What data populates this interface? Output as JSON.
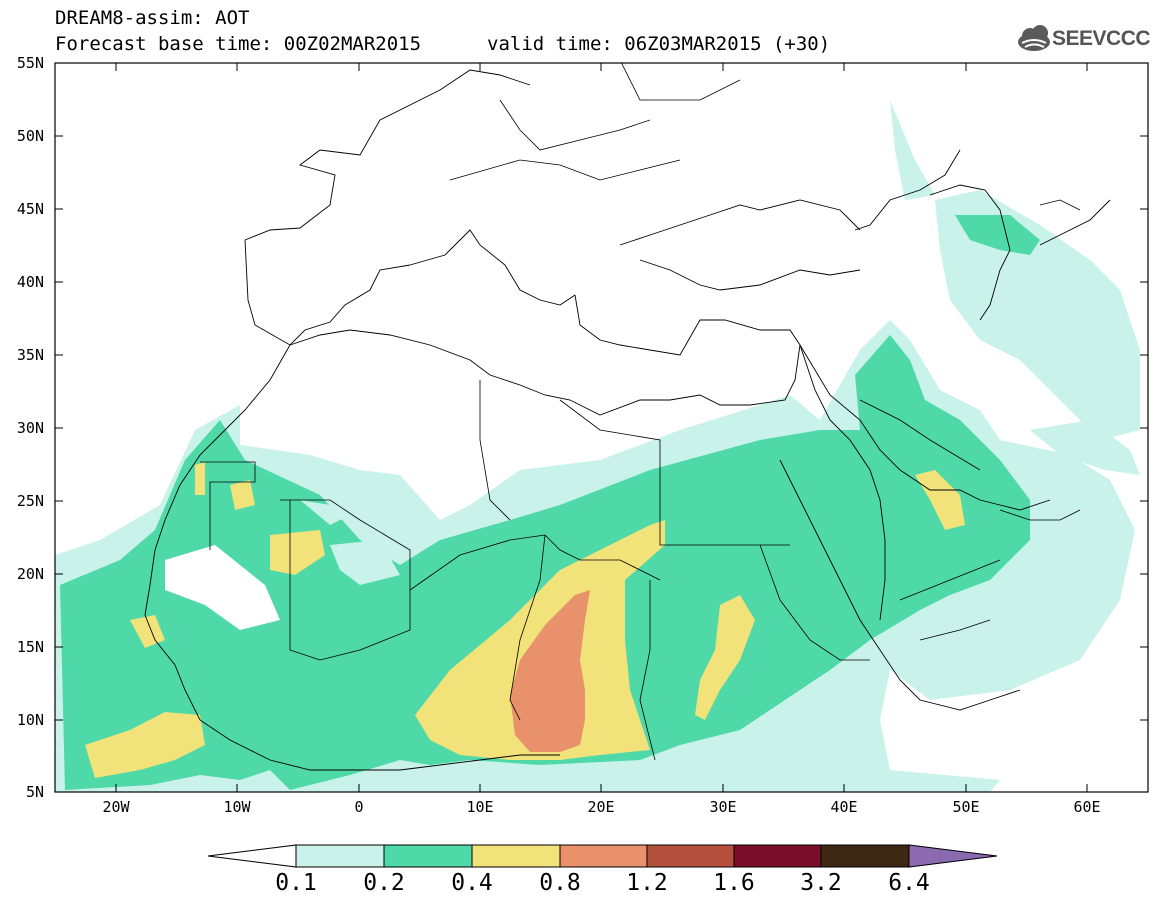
{
  "header": {
    "title": "DREAM8-assim: AOT",
    "base_time": "Forecast base time: 00Z02MAR2015",
    "valid_time": "valid time: 06Z03MAR2015 (+30)"
  },
  "logo": {
    "text": "SEEVCCC",
    "icon": "cloud-icon"
  },
  "map": {
    "lat_labels": [
      "55N",
      "50N",
      "45N",
      "40N",
      "35N",
      "30N",
      "25N",
      "20N",
      "15N",
      "10N",
      "5N"
    ],
    "lon_labels": [
      "20W",
      "10W",
      "0",
      "10E",
      "20E",
      "30E",
      "40E",
      "50E",
      "60E"
    ],
    "lon_range": [
      -25,
      65
    ],
    "lat_range": [
      5,
      55
    ]
  },
  "colorbar": {
    "labels": [
      "0.1",
      "0.2",
      "0.4",
      "0.8",
      "1.2",
      "1.6",
      "3.2",
      "6.4"
    ],
    "colors": [
      "#ffffff",
      "#c8f2ea",
      "#4fd8a8",
      "#f2e27a",
      "#e8916a",
      "#b54f3e",
      "#7a0d2a",
      "#3d2814",
      "#8b6ab0"
    ]
  }
}
